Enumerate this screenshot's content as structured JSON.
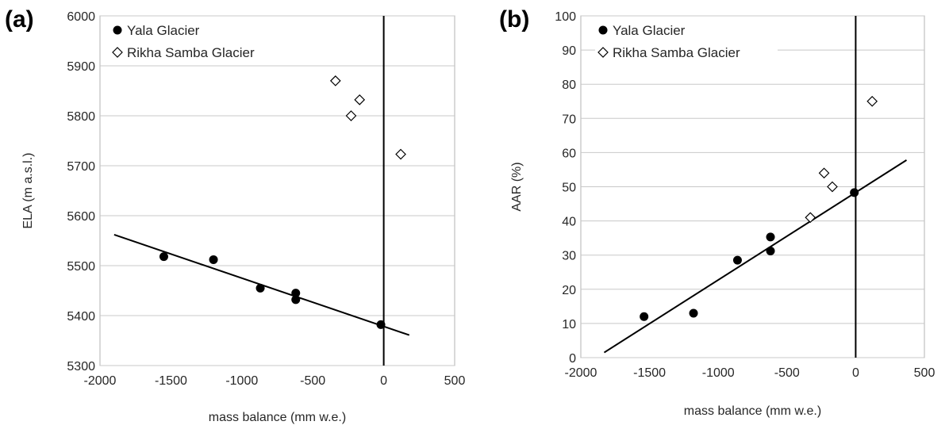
{
  "chart_data": [
    {
      "panel_label": "(a)",
      "type": "scatter",
      "xlabel": "mass balance (mm w.e.)",
      "ylabel": "ELA (m a.s.l.)",
      "xlim": [
        -2000,
        500
      ],
      "ylim": [
        5300,
        6000
      ],
      "xticks": [
        -2000,
        -1500,
        -1000,
        -500,
        0,
        500
      ],
      "yticks": [
        5300,
        5400,
        5500,
        5600,
        5700,
        5800,
        5900,
        6000
      ],
      "grid": "horizontal",
      "legend_position": "top-left",
      "vertical_reference_x": 0,
      "series": [
        {
          "name": "Yala Glacier",
          "marker": "filled-circle",
          "color": "#000000",
          "points": [
            [
              -1550,
              5518
            ],
            [
              -1200,
              5512
            ],
            [
              -870,
              5455
            ],
            [
              -620,
              5445
            ],
            [
              -620,
              5432
            ],
            [
              -20,
              5382
            ]
          ]
        },
        {
          "name": "Rikha Samba Glacier",
          "marker": "open-diamond",
          "color": "#000000",
          "points": [
            [
              -340,
              5870
            ],
            [
              -170,
              5832
            ],
            [
              -230,
              5800
            ],
            [
              120,
              5723
            ]
          ]
        }
      ],
      "trendline": {
        "series": "Yala Glacier",
        "from": [
          -1900,
          5562
        ],
        "to": [
          180,
          5361
        ]
      }
    },
    {
      "panel_label": "(b)",
      "type": "scatter",
      "xlabel": "mass balance (mm w.e.)",
      "ylabel": "AAR (%)",
      "xlim": [
        -2000,
        500
      ],
      "ylim": [
        0,
        100
      ],
      "xticks": [
        -2000,
        -1500,
        -1000,
        -500,
        0,
        500
      ],
      "yticks": [
        0,
        10,
        20,
        30,
        40,
        50,
        60,
        70,
        80,
        90,
        100
      ],
      "grid": "horizontal",
      "legend_position": "top-left",
      "vertical_reference_x": 0,
      "series": [
        {
          "name": "Yala Glacier",
          "marker": "filled-circle",
          "color": "#000000",
          "points": [
            [
              -1540,
              12
            ],
            [
              -1180,
              13
            ],
            [
              -860,
              28.5
            ],
            [
              -620,
              35.3
            ],
            [
              -620,
              31.2
            ],
            [
              -10,
              48.3
            ]
          ]
        },
        {
          "name": "Rikha Samba Glacier",
          "marker": "open-diamond",
          "color": "#000000",
          "points": [
            [
              -330,
              41
            ],
            [
              -230,
              54
            ],
            [
              -170,
              50
            ],
            [
              120,
              75
            ]
          ]
        }
      ],
      "trendline": {
        "series": "Yala Glacier",
        "from": [
          -1830,
          1.5
        ],
        "to": [
          370,
          57.8
        ]
      }
    }
  ]
}
